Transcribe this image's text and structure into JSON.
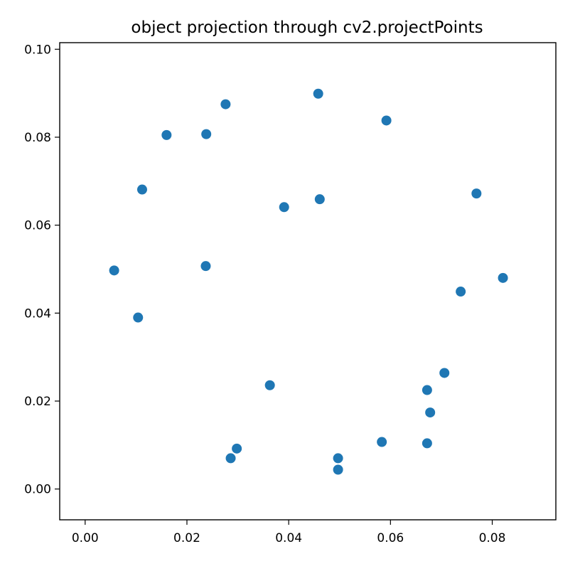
{
  "chart_data": {
    "type": "scatter",
    "title": "object projection through cv2.projectPoints",
    "xlabel": "",
    "ylabel": "",
    "xlim": [
      -0.005,
      0.0925
    ],
    "ylim": [
      -0.007,
      0.1015
    ],
    "x_ticks": [
      0.0,
      0.02,
      0.04,
      0.06,
      0.08
    ],
    "x_tick_labels": [
      "0.00",
      "0.02",
      "0.04",
      "0.06",
      "0.08"
    ],
    "y_ticks": [
      0.0,
      0.02,
      0.04,
      0.06,
      0.08,
      0.1
    ],
    "y_tick_labels": [
      "0.00",
      "0.02",
      "0.04",
      "0.06",
      "0.08",
      "0.10"
    ],
    "grid": false,
    "marker_color": "#1f77b4",
    "points": [
      {
        "x": 0.0057,
        "y": 0.0497
      },
      {
        "x": 0.0104,
        "y": 0.039
      },
      {
        "x": 0.0112,
        "y": 0.0681
      },
      {
        "x": 0.016,
        "y": 0.0805
      },
      {
        "x": 0.0237,
        "y": 0.0507
      },
      {
        "x": 0.0238,
        "y": 0.0807
      },
      {
        "x": 0.0276,
        "y": 0.0875
      },
      {
        "x": 0.0286,
        "y": 0.007
      },
      {
        "x": 0.0298,
        "y": 0.0092
      },
      {
        "x": 0.0363,
        "y": 0.0236
      },
      {
        "x": 0.0391,
        "y": 0.0641
      },
      {
        "x": 0.0458,
        "y": 0.0899
      },
      {
        "x": 0.0461,
        "y": 0.0659
      },
      {
        "x": 0.0497,
        "y": 0.007
      },
      {
        "x": 0.0497,
        "y": 0.0044
      },
      {
        "x": 0.0583,
        "y": 0.0107
      },
      {
        "x": 0.0592,
        "y": 0.0838
      },
      {
        "x": 0.0672,
        "y": 0.0104
      },
      {
        "x": 0.0672,
        "y": 0.0225
      },
      {
        "x": 0.0678,
        "y": 0.0174
      },
      {
        "x": 0.0706,
        "y": 0.0264
      },
      {
        "x": 0.0738,
        "y": 0.0449
      },
      {
        "x": 0.0769,
        "y": 0.0672
      },
      {
        "x": 0.0821,
        "y": 0.048
      }
    ]
  }
}
